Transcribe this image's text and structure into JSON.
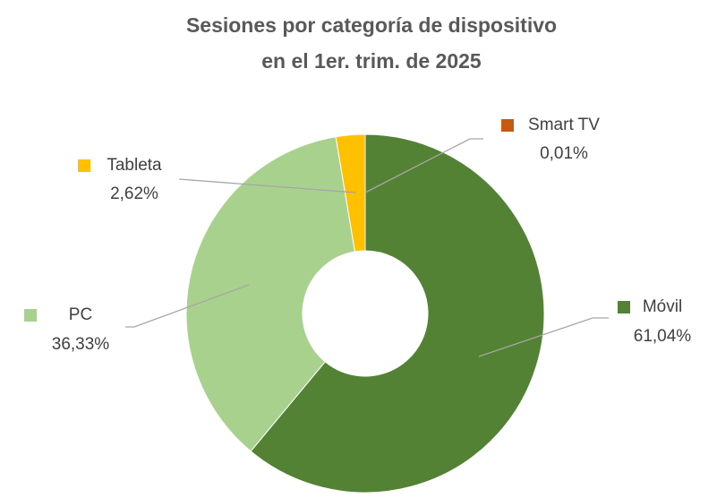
{
  "chart_data": {
    "type": "donut",
    "title": [
      "Sesiones por categoría de dispositivo",
      "en el 1er. trim. de 2025"
    ],
    "categories": [
      "Móvil",
      "PC",
      "Tableta",
      "Smart TV"
    ],
    "values": [
      61.04,
      36.33,
      2.62,
      0.01
    ],
    "value_labels": [
      "61,04%",
      "36,33%",
      "2,62%",
      "0,01%"
    ],
    "colors": [
      "#548235",
      "#a9d18e",
      "#ffc000",
      "#c55a11"
    ]
  }
}
